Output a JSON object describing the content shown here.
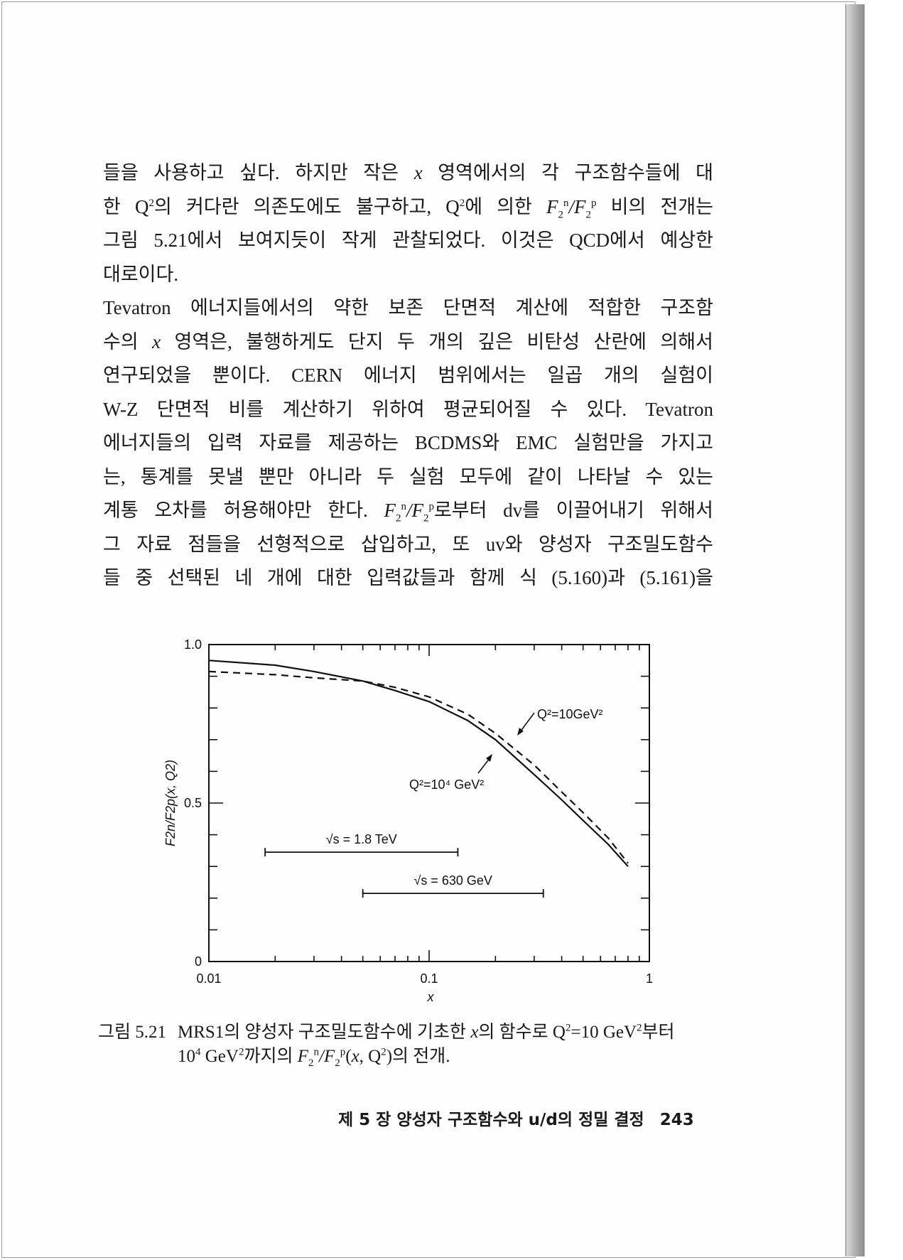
{
  "body": {
    "lines": [
      [
        "들을 사용하고 싶다. 하지만 작은 ",
        {
          "it": "x"
        },
        " 영역에서의 각 구조함수들에 대"
      ],
      [
        "한 Q",
        {
          "sup": "2"
        },
        "의 커다란 의존도에도 불구하고, Q",
        {
          "sup": "2"
        },
        "에 의한 ",
        {
          "it": "F"
        },
        {
          "sub": "2"
        },
        {
          "sup": "n"
        },
        {
          "it": "/F"
        },
        {
          "sub": "2"
        },
        {
          "sup": "p"
        },
        " 비의 전개는"
      ],
      [
        "그림 5.21에서 보여지듯이 작게 관찰되었다. 이것은 QCD에서 예상한"
      ],
      [
        "대로이다."
      ],
      [
        "  Tevatron 에너지들에서의 약한 보존 단면적 계산에 적합한 구조함"
      ],
      [
        "수의 ",
        {
          "it": "x"
        },
        " 영역은, 불행하게도 단지 두 개의 깊은 비탄성 산란에 의해서"
      ],
      [
        "연구되었을 뿐이다. CERN 에너지 범위에서는 일곱 개의 실험이"
      ],
      [
        "W-Z 단면적 비를 계산하기 위하여 평균되어질 수 있다. Tevatron"
      ],
      [
        "에너지들의 입력 자료를 제공하는 BCDMS와 EMC 실험만을 가지고"
      ],
      [
        "는, 통계를 못낼 뿐만 아니라 두 실험 모두에 같이 나타날 수 있는"
      ],
      [
        "계통 오차를 허용해야만 한다. ",
        {
          "it": "F"
        },
        {
          "sub": "2"
        },
        {
          "sup": "n"
        },
        {
          "it": "/F"
        },
        {
          "sub": "2"
        },
        {
          "sup": "p"
        },
        "로부터 dv를 이끌어내기 위해서"
      ],
      [
        "그 자료 점들을 선형적으로 삽입하고, 또 uv와 양성자 구조밀도함수"
      ],
      [
        "들 중 선택된 네 개에 대한 입력값들과 함께 식 (5.160)과 (5.161)을"
      ]
    ]
  },
  "chart_data": {
    "type": "line",
    "xlabel": "x",
    "ylabel": "F2n/F2p(x, Q2)",
    "xscale": "log",
    "xlim": [
      0.01,
      1
    ],
    "ylim": [
      0,
      1.0
    ],
    "x_tick_labels": [
      "0.01",
      "0.1",
      "1"
    ],
    "y_tick_labels": [
      "0",
      "0.5",
      "1.0"
    ],
    "grid": false,
    "series": [
      {
        "name": "Q²=10⁴ GeV²",
        "style": "solid",
        "x": [
          0.01,
          0.02,
          0.03,
          0.05,
          0.07,
          0.1,
          0.15,
          0.2,
          0.3,
          0.4,
          0.5,
          0.65,
          0.8
        ],
        "y": [
          0.95,
          0.935,
          0.915,
          0.885,
          0.855,
          0.82,
          0.76,
          0.7,
          0.59,
          0.51,
          0.445,
          0.37,
          0.3
        ]
      },
      {
        "name": "Q²=10 GeV²",
        "style": "dashed",
        "x": [
          0.01,
          0.02,
          0.03,
          0.05,
          0.07,
          0.1,
          0.15,
          0.2,
          0.3,
          0.4,
          0.5,
          0.65,
          0.8
        ],
        "y": [
          0.915,
          0.905,
          0.895,
          0.885,
          0.865,
          0.835,
          0.78,
          0.72,
          0.62,
          0.535,
          0.47,
          0.39,
          0.31
        ]
      }
    ],
    "annotations": [
      {
        "label": "Q²=10GeV²",
        "target_series": "dashed"
      },
      {
        "label": "Q²=10⁴ GeV²",
        "target_series": "solid"
      }
    ],
    "ranges": [
      {
        "label": "√s = 1.8 TeV",
        "x": [
          0.018,
          0.135
        ],
        "y": 0.345
      },
      {
        "label": "√s = 630 GeV",
        "x": [
          0.05,
          0.33
        ],
        "y": 0.215
      }
    ]
  },
  "caption": {
    "number": "그림 5.21",
    "line1": [
      "MRS1의 양성자 구조밀도함수에 기초한 ",
      {
        "it": "x"
      },
      "의 함수로 Q",
      {
        "sup": "2"
      },
      "=10 GeV",
      {
        "sup": "2"
      },
      "부터"
    ],
    "line2": [
      "10",
      {
        "sup": "4"
      },
      " GeV",
      {
        "sup": "2"
      },
      "까지의 ",
      {
        "it": "F"
      },
      {
        "sub": "2"
      },
      {
        "sup": "n"
      },
      {
        "it": "/F"
      },
      {
        "sub": "2"
      },
      {
        "sup": "p"
      },
      "(",
      {
        "it": "x"
      },
      ", Q",
      {
        "sup": "2"
      },
      ")의 전개."
    ]
  },
  "footer": {
    "running_head": "제 5 장  양성자 구조함수와 u/d의 정밀 결정",
    "page_number": "243"
  }
}
